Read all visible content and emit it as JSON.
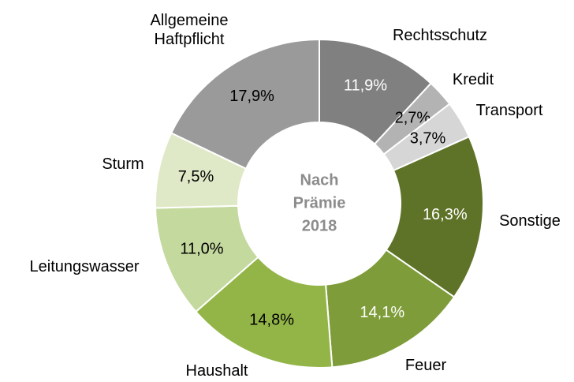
{
  "chart_data": {
    "type": "donut",
    "center_label": "Nach\nPrämie\n2018",
    "categories": [
      "Rechtsschutz",
      "Kredit",
      "Transport",
      "Sonstige",
      "Feuer",
      "Haushalt",
      "Leitungswasser",
      "Sturm",
      "Allgemeine\nHaftpflicht"
    ],
    "values": [
      11.9,
      2.7,
      3.7,
      16.3,
      14.1,
      14.8,
      11.0,
      7.5,
      17.9
    ],
    "value_labels": [
      "11,9%",
      "2,7%",
      "3,7%",
      "16,3%",
      "14,1%",
      "14,8%",
      "11,0%",
      "7,5%",
      "17,9%"
    ],
    "colors": [
      "#808080",
      "#b3b3b3",
      "#d6d6d6",
      "#5f7328",
      "#7e9d3a",
      "#93b548",
      "#c4d99e",
      "#e0e9c7",
      "#9a9a9a"
    ],
    "value_label_colors": [
      "#ffffff",
      "#000000",
      "#000000",
      "#ffffff",
      "#ffffff",
      "#000000",
      "#000000",
      "#000000",
      "#000000"
    ]
  }
}
